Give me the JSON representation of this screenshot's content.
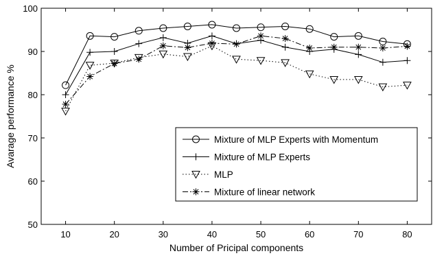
{
  "chart_data": {
    "type": "line",
    "title": "",
    "xlabel": "Number of Pricipal components",
    "ylabel": "Avarage performance %",
    "xlim": [
      5,
      85
    ],
    "ylim": [
      50,
      100
    ],
    "xticks": [
      10,
      20,
      30,
      40,
      50,
      60,
      70,
      80
    ],
    "yticks": [
      50,
      60,
      70,
      80,
      90,
      100
    ],
    "grid": false,
    "legend_position": "lower-right",
    "x": [
      10,
      15,
      20,
      25,
      30,
      35,
      40,
      45,
      50,
      55,
      60,
      65,
      70,
      75,
      80
    ],
    "series": [
      {
        "name": "Mixture of MLP Experts with Momentum",
        "marker": "circle",
        "line_style": "solid",
        "values": [
          82.2,
          93.6,
          93.4,
          94.8,
          95.4,
          95.8,
          96.2,
          95.4,
          95.6,
          95.8,
          95.2,
          93.4,
          93.6,
          92.3,
          91.7
        ]
      },
      {
        "name": "Mixture of MLP Experts",
        "marker": "plus",
        "line_style": "solid",
        "values": [
          80.0,
          89.8,
          90.0,
          91.8,
          93.2,
          91.9,
          93.6,
          91.8,
          92.6,
          91.0,
          90.0,
          90.5,
          89.3,
          87.5,
          87.9
        ]
      },
      {
        "name": "MLP",
        "marker": "triangle-down",
        "line_style": "dotted",
        "values": [
          76.2,
          86.8,
          87.3,
          88.6,
          89.4,
          88.8,
          91.3,
          88.2,
          87.9,
          87.4,
          84.8,
          83.5,
          83.5,
          81.8,
          82.2
        ]
      },
      {
        "name": "Mixture of linear network",
        "marker": "star",
        "line_style": "dashdot",
        "values": [
          77.8,
          84.2,
          87.2,
          88.2,
          91.3,
          90.9,
          91.9,
          91.7,
          93.6,
          93.0,
          90.8,
          91.0,
          91.0,
          90.8,
          91.2
        ]
      }
    ]
  }
}
